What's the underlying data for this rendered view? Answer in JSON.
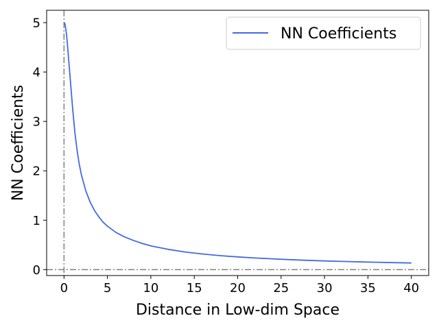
{
  "chart_data": {
    "type": "line",
    "title": "",
    "xlabel": "Distance in Low-dim Space",
    "ylabel": "NN Coefficients",
    "xlim": [
      -2,
      42
    ],
    "ylim": [
      -0.12,
      5.25
    ],
    "xticks": [
      0,
      5,
      10,
      15,
      20,
      25,
      30,
      35,
      40
    ],
    "yticks": [
      0,
      1,
      2,
      3,
      4,
      5
    ],
    "grid": false,
    "legend": "top-right",
    "reference_lines": [
      {
        "orientation": "vertical",
        "value": 0,
        "style": "dash-dot",
        "color": "#808080"
      },
      {
        "orientation": "horizontal",
        "value": 0,
        "style": "dash-dot",
        "color": "#808080"
      }
    ],
    "series": [
      {
        "name": "NN Coefficients",
        "color": "#4169e1",
        "x": [
          0,
          0.1,
          0.2,
          0.3,
          0.4,
          0.5,
          0.6,
          0.8,
          1,
          1.25,
          1.5,
          1.75,
          2,
          2.5,
          3,
          3.5,
          4,
          4.5,
          5,
          6,
          7,
          8,
          9,
          10,
          12,
          14,
          16,
          18,
          20,
          22,
          24,
          26,
          28,
          30,
          32,
          34,
          36,
          38,
          40
        ],
        "y": [
          5.0,
          4.98,
          4.88,
          4.74,
          4.55,
          4.33,
          4.12,
          3.68,
          3.25,
          2.78,
          2.42,
          2.14,
          1.92,
          1.6,
          1.37,
          1.2,
          1.07,
          0.96,
          0.88,
          0.75,
          0.66,
          0.59,
          0.53,
          0.48,
          0.41,
          0.355,
          0.315,
          0.283,
          0.257,
          0.236,
          0.218,
          0.202,
          0.188,
          0.176,
          0.166,
          0.157,
          0.149,
          0.141,
          0.134
        ]
      }
    ]
  }
}
